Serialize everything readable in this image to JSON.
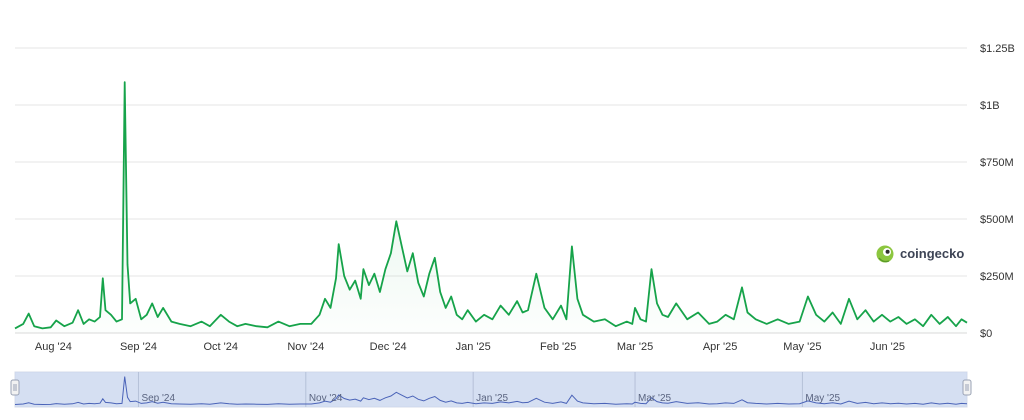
{
  "chart_data": {
    "type": "area",
    "title": "",
    "xlabel": "",
    "ylabel": "",
    "ylim": [
      0,
      1250000000
    ],
    "y_ticks": [
      {
        "value": 0,
        "label": "$0"
      },
      {
        "value": 250000000,
        "label": "$250M"
      },
      {
        "value": 500000000,
        "label": "$500M"
      },
      {
        "value": 750000000,
        "label": "$750M"
      },
      {
        "value": 1000000000,
        "label": "$1B"
      },
      {
        "value": 1250000000,
        "label": "$1.25B"
      }
    ],
    "x_range": [
      "2024-07-18",
      "2025-06-30"
    ],
    "x_ticks": [
      {
        "date": "2024-08-01",
        "label": "Aug '24"
      },
      {
        "date": "2024-09-01",
        "label": "Sep '24"
      },
      {
        "date": "2024-10-01",
        "label": "Oct '24"
      },
      {
        "date": "2024-11-01",
        "label": "Nov '24"
      },
      {
        "date": "2024-12-01",
        "label": "Dec '24"
      },
      {
        "date": "2025-01-01",
        "label": "Jan '25"
      },
      {
        "date": "2025-02-01",
        "label": "Feb '25"
      },
      {
        "date": "2025-03-01",
        "label": "Mar '25"
      },
      {
        "date": "2025-04-01",
        "label": "Apr '25"
      },
      {
        "date": "2025-05-01",
        "label": "May '25"
      },
      {
        "date": "2025-06-01",
        "label": "Jun '25"
      }
    ],
    "grid": true,
    "series": [
      {
        "color": "#16a34a",
        "points": [
          [
            "2024-07-18",
            20000000
          ],
          [
            "2024-07-21",
            40000000
          ],
          [
            "2024-07-23",
            85000000
          ],
          [
            "2024-07-25",
            30000000
          ],
          [
            "2024-07-28",
            20000000
          ],
          [
            "2024-07-31",
            25000000
          ],
          [
            "2024-08-02",
            55000000
          ],
          [
            "2024-08-05",
            30000000
          ],
          [
            "2024-08-08",
            45000000
          ],
          [
            "2024-08-10",
            100000000
          ],
          [
            "2024-08-12",
            40000000
          ],
          [
            "2024-08-14",
            60000000
          ],
          [
            "2024-08-16",
            50000000
          ],
          [
            "2024-08-18",
            70000000
          ],
          [
            "2024-08-19",
            240000000
          ],
          [
            "2024-08-20",
            100000000
          ],
          [
            "2024-08-22",
            80000000
          ],
          [
            "2024-08-24",
            50000000
          ],
          [
            "2024-08-26",
            60000000
          ],
          [
            "2024-08-27",
            1100000000
          ],
          [
            "2024-08-28",
            300000000
          ],
          [
            "2024-08-29",
            130000000
          ],
          [
            "2024-08-31",
            150000000
          ],
          [
            "2024-09-02",
            60000000
          ],
          [
            "2024-09-04",
            80000000
          ],
          [
            "2024-09-06",
            130000000
          ],
          [
            "2024-09-08",
            70000000
          ],
          [
            "2024-09-10",
            110000000
          ],
          [
            "2024-09-13",
            50000000
          ],
          [
            "2024-09-16",
            40000000
          ],
          [
            "2024-09-20",
            30000000
          ],
          [
            "2024-09-24",
            50000000
          ],
          [
            "2024-09-27",
            30000000
          ],
          [
            "2024-10-01",
            80000000
          ],
          [
            "2024-10-04",
            50000000
          ],
          [
            "2024-10-07",
            30000000
          ],
          [
            "2024-10-10",
            40000000
          ],
          [
            "2024-10-14",
            30000000
          ],
          [
            "2024-10-18",
            25000000
          ],
          [
            "2024-10-22",
            50000000
          ],
          [
            "2024-10-26",
            30000000
          ],
          [
            "2024-10-30",
            40000000
          ],
          [
            "2024-11-03",
            40000000
          ],
          [
            "2024-11-06",
            80000000
          ],
          [
            "2024-11-08",
            150000000
          ],
          [
            "2024-11-10",
            110000000
          ],
          [
            "2024-11-12",
            240000000
          ],
          [
            "2024-11-13",
            390000000
          ],
          [
            "2024-11-15",
            250000000
          ],
          [
            "2024-11-17",
            190000000
          ],
          [
            "2024-11-19",
            230000000
          ],
          [
            "2024-11-21",
            150000000
          ],
          [
            "2024-11-22",
            280000000
          ],
          [
            "2024-11-24",
            210000000
          ],
          [
            "2024-11-26",
            260000000
          ],
          [
            "2024-11-28",
            180000000
          ],
          [
            "2024-11-30",
            280000000
          ],
          [
            "2024-12-02",
            350000000
          ],
          [
            "2024-12-04",
            490000000
          ],
          [
            "2024-12-06",
            380000000
          ],
          [
            "2024-12-08",
            270000000
          ],
          [
            "2024-12-10",
            350000000
          ],
          [
            "2024-12-12",
            220000000
          ],
          [
            "2024-12-14",
            160000000
          ],
          [
            "2024-12-16",
            260000000
          ],
          [
            "2024-12-18",
            330000000
          ],
          [
            "2024-12-20",
            180000000
          ],
          [
            "2024-12-22",
            110000000
          ],
          [
            "2024-12-24",
            160000000
          ],
          [
            "2024-12-26",
            80000000
          ],
          [
            "2024-12-28",
            60000000
          ],
          [
            "2024-12-30",
            100000000
          ],
          [
            "2025-01-02",
            50000000
          ],
          [
            "2025-01-05",
            80000000
          ],
          [
            "2025-01-08",
            60000000
          ],
          [
            "2025-01-11",
            120000000
          ],
          [
            "2025-01-14",
            80000000
          ],
          [
            "2025-01-17",
            140000000
          ],
          [
            "2025-01-19",
            90000000
          ],
          [
            "2025-01-21",
            100000000
          ],
          [
            "2025-01-24",
            260000000
          ],
          [
            "2025-01-27",
            110000000
          ],
          [
            "2025-01-30",
            60000000
          ],
          [
            "2025-02-02",
            120000000
          ],
          [
            "2025-02-04",
            60000000
          ],
          [
            "2025-02-06",
            380000000
          ],
          [
            "2025-02-08",
            150000000
          ],
          [
            "2025-02-10",
            80000000
          ],
          [
            "2025-02-14",
            50000000
          ],
          [
            "2025-02-18",
            60000000
          ],
          [
            "2025-02-22",
            30000000
          ],
          [
            "2025-02-26",
            50000000
          ],
          [
            "2025-02-28",
            40000000
          ],
          [
            "2025-03-01",
            110000000
          ],
          [
            "2025-03-03",
            60000000
          ],
          [
            "2025-03-05",
            50000000
          ],
          [
            "2025-03-07",
            280000000
          ],
          [
            "2025-03-09",
            130000000
          ],
          [
            "2025-03-11",
            80000000
          ],
          [
            "2025-03-13",
            70000000
          ],
          [
            "2025-03-16",
            130000000
          ],
          [
            "2025-03-20",
            60000000
          ],
          [
            "2025-03-24",
            90000000
          ],
          [
            "2025-03-28",
            40000000
          ],
          [
            "2025-03-31",
            50000000
          ],
          [
            "2025-04-03",
            80000000
          ],
          [
            "2025-04-06",
            60000000
          ],
          [
            "2025-04-09",
            200000000
          ],
          [
            "2025-04-11",
            90000000
          ],
          [
            "2025-04-14",
            60000000
          ],
          [
            "2025-04-18",
            40000000
          ],
          [
            "2025-04-22",
            60000000
          ],
          [
            "2025-04-26",
            40000000
          ],
          [
            "2025-04-30",
            50000000
          ],
          [
            "2025-05-03",
            160000000
          ],
          [
            "2025-05-06",
            80000000
          ],
          [
            "2025-05-09",
            50000000
          ],
          [
            "2025-05-12",
            90000000
          ],
          [
            "2025-05-15",
            40000000
          ],
          [
            "2025-05-18",
            150000000
          ],
          [
            "2025-05-21",
            60000000
          ],
          [
            "2025-05-24",
            100000000
          ],
          [
            "2025-05-27",
            50000000
          ],
          [
            "2025-05-30",
            80000000
          ],
          [
            "2025-06-02",
            50000000
          ],
          [
            "2025-06-05",
            70000000
          ],
          [
            "2025-06-08",
            40000000
          ],
          [
            "2025-06-11",
            60000000
          ],
          [
            "2025-06-14",
            30000000
          ],
          [
            "2025-06-17",
            80000000
          ],
          [
            "2025-06-20",
            40000000
          ],
          [
            "2025-06-23",
            70000000
          ],
          [
            "2025-06-26",
            30000000
          ],
          [
            "2025-06-28",
            60000000
          ],
          [
            "2025-06-30",
            45000000
          ]
        ]
      }
    ],
    "navigator": {
      "x_ticks": [
        {
          "date": "2024-09-01",
          "label": "Sep '24"
        },
        {
          "date": "2024-11-01",
          "label": "Nov '24"
        },
        {
          "date": "2025-01-01",
          "label": "Jan '25"
        },
        {
          "date": "2025-03-01",
          "label": "Mar '25"
        },
        {
          "date": "2025-05-01",
          "label": "May '25"
        }
      ]
    }
  },
  "watermark": {
    "text": "coingecko",
    "icon": "gecko-logo-icon"
  },
  "colors": {
    "line": "#16a34a",
    "area_top": "#16a34a",
    "grid": "#e6e6e6",
    "navigator_fill": "#c9d5ee",
    "navigator_line": "#4a63b8"
  }
}
